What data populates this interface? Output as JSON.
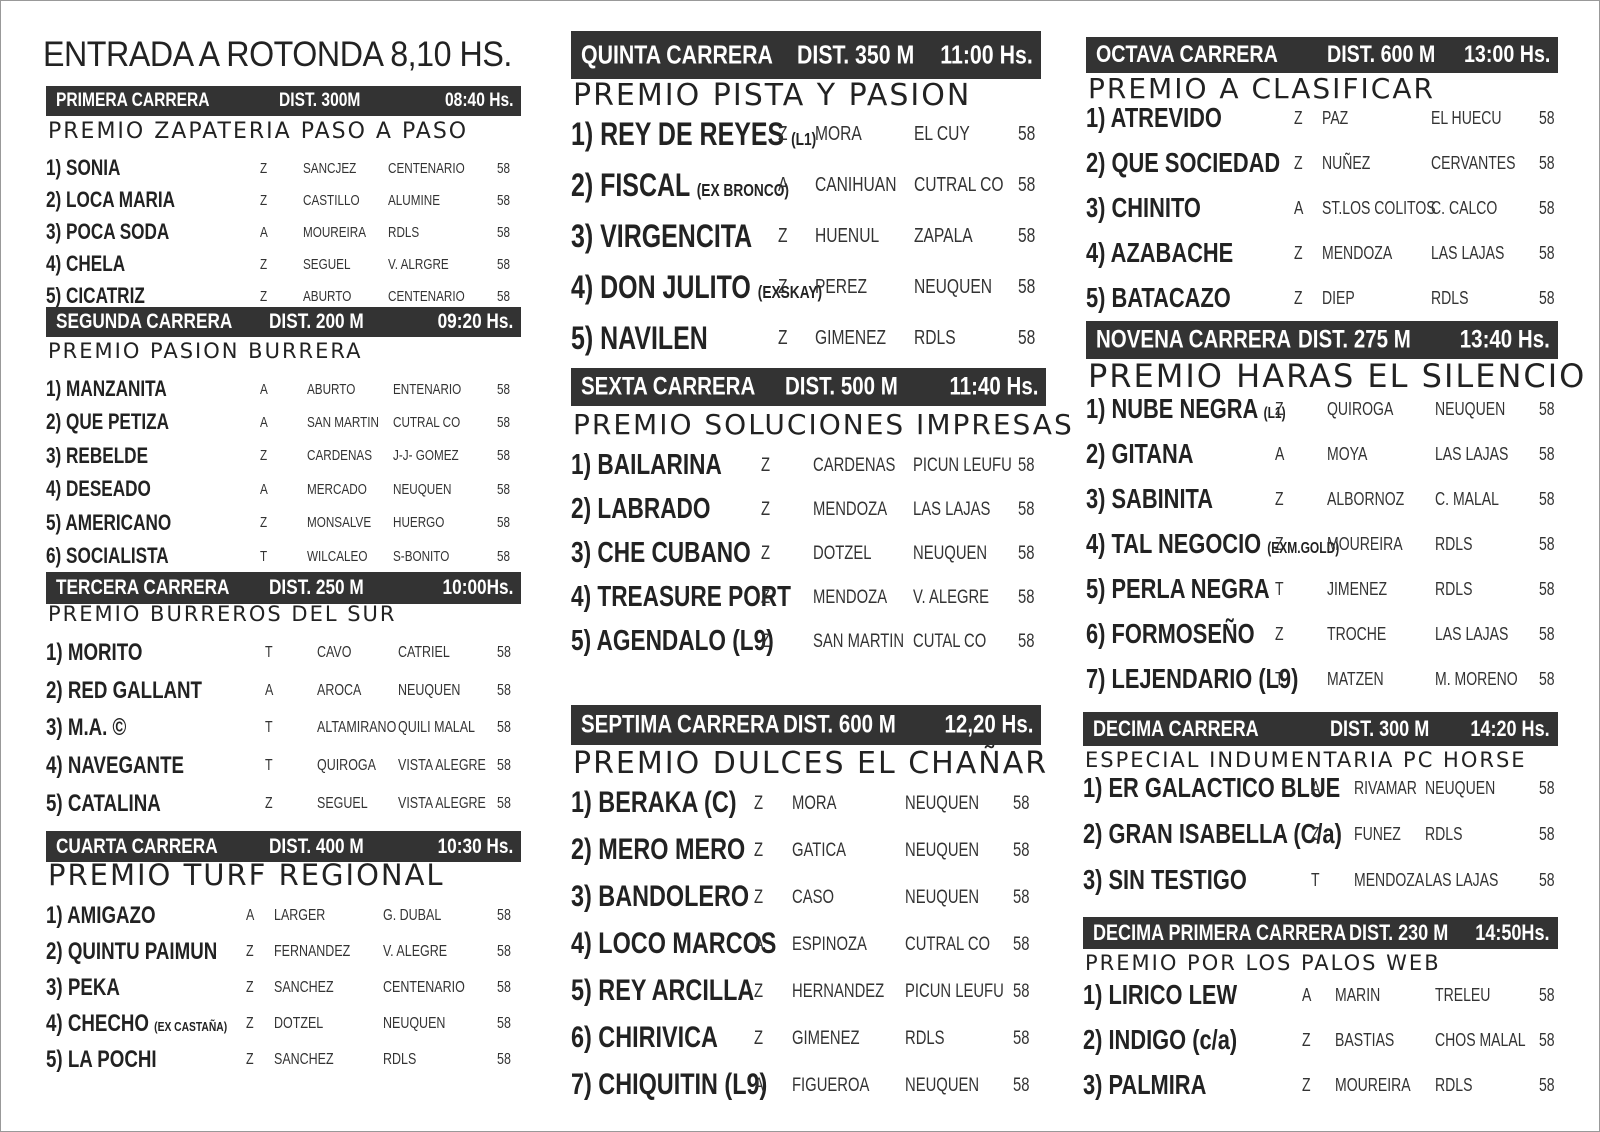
{
  "header": {
    "title": "ENTRADA A ROTONDA 8,10 HS."
  },
  "races": [
    {
      "name": "PRIMERA CARRERA",
      "dist": "DIST. 300M",
      "time": "08:40 Hs.",
      "prize": "PREMIO ZAPATERIA PASO A PASO",
      "horses": [
        {
          "name": "1) SONIA",
          "cat": "Z",
          "jockey": "SANCJEZ",
          "from": "CENTENARIO",
          "weight": "58"
        },
        {
          "name": "2) LOCA MARIA",
          "cat": "Z",
          "jockey": "CASTILLO",
          "from": "ALUMINE",
          "weight": "58"
        },
        {
          "name": "3) POCA SODA",
          "cat": "A",
          "jockey": "MOUREIRA",
          "from": "RDLS",
          "weight": "58"
        },
        {
          "name": "4) CHELA",
          "cat": "Z",
          "jockey": "SEGUEL",
          "from": "V. ALRGRE",
          "weight": "58"
        },
        {
          "name": "5) CICATRIZ",
          "cat": "Z",
          "jockey": "ABURTO",
          "from": "CENTENARIO",
          "weight": "58"
        }
      ]
    },
    {
      "name": "SEGUNDA CARRERA",
      "dist": "DIST. 200 M",
      "time": "09:20 Hs.",
      "prize": "PREMIO PASION BURRERA",
      "horses": [
        {
          "name": "1) MANZANITA",
          "cat": "A",
          "jockey": "ABURTO",
          "from": "ENTENARIO",
          "weight": "58"
        },
        {
          "name": "2) QUE PETIZA",
          "cat": "A",
          "jockey": "SAN MARTIN",
          "from": "CUTRAL CO",
          "weight": "58"
        },
        {
          "name": "3) REBELDE",
          "cat": "Z",
          "jockey": "CARDENAS",
          "from": "J-J- GOMEZ",
          "weight": "58"
        },
        {
          "name": "4) DESEADO",
          "cat": "A",
          "jockey": "MERCADO",
          "from": "NEUQUEN",
          "weight": "58"
        },
        {
          "name": "5)  AMERICANO",
          "cat": "Z",
          "jockey": "MONSALVE",
          "from": "HUERGO",
          "weight": "58"
        },
        {
          "name": "6) SOCIALISTA",
          "cat": "T",
          "jockey": "WILCALEO",
          "from": "S-BONITO",
          "weight": "58"
        }
      ]
    },
    {
      "name": "TERCERA CARRERA",
      "dist": "DIST. 250 M",
      "time": "10:00Hs.",
      "prize": "PREMIO BURREROS DEL SUR",
      "horses": [
        {
          "name": "1) MORITO",
          "cat": "T",
          "jockey": "CAVO",
          "from": "CATRIEL",
          "weight": "58"
        },
        {
          "name": "2) RED GALLANT",
          "cat": "A",
          "jockey": "AROCA",
          "from": "NEUQUEN",
          "weight": "58"
        },
        {
          "name": "3) M.A. ©",
          "cat": "T",
          "jockey": "ALTAMIRANO",
          "from": "QUILI MALAL",
          "weight": "58"
        },
        {
          "name": "4) NAVEGANTE",
          "cat": "T",
          "jockey": "QUIROGA",
          "from": "VISTA ALEGRE",
          "weight": "58"
        },
        {
          "name": "5) CATALINA",
          "cat": "Z",
          "jockey": "SEGUEL",
          "from": "VISTA ALEGRE",
          "weight": "58"
        }
      ]
    },
    {
      "name": "CUARTA CARRERA",
      "dist": "DIST. 400 M",
      "time": "10:30 Hs.",
      "prize": "PREMIO TURF REGIONAL",
      "horses": [
        {
          "name": "1) AMIGAZO",
          "cat": "A",
          "jockey": "LARGER",
          "from": "G. DUBAL",
          "weight": "58"
        },
        {
          "name": "2) QUINTU PAIMUN",
          "cat": "Z",
          "jockey": "FERNANDEZ",
          "from": "V. ALEGRE",
          "weight": "58"
        },
        {
          "name": "3) PEKA",
          "cat": "Z",
          "jockey": "SANCHEZ",
          "from": "CENTENARIO",
          "weight": "58"
        },
        {
          "name": "4) CHECHO",
          "note": "(EX CASTAÑA)",
          "cat": "Z",
          "jockey": "DOTZEL",
          "from": "NEUQUEN",
          "weight": "58"
        },
        {
          "name": "5) LA POCHI",
          "cat": "Z",
          "jockey": "SANCHEZ",
          "from": "RDLS",
          "weight": "58"
        }
      ]
    },
    {
      "name": "QUINTA CARRERA",
      "dist": "DIST. 350 M",
      "time": "11:00 Hs.",
      "prize": "PREMIO PISTA Y PASION",
      "horses": [
        {
          "name": "1) REY DE REYES",
          "note": "(L1)",
          "cat": "Z",
          "jockey": "MORA",
          "from": "EL CUY",
          "weight": "58"
        },
        {
          "name": "2) FISCAL",
          "note": "(EX BRONCO)",
          "cat": "A",
          "jockey": "CANIHUAN",
          "from": "CUTRAL CO",
          "weight": "58"
        },
        {
          "name": "3) VIRGENCITA",
          "cat": "Z",
          "jockey": "HUENUL",
          "from": "ZAPALA",
          "weight": "58"
        },
        {
          "name": "4) DON JULITO",
          "note": "(EXSKAY)",
          "cat": "Z",
          "jockey": "PEREZ",
          "from": "NEUQUEN",
          "weight": "58"
        },
        {
          "name": "5) NAVILEN",
          "cat": "Z",
          "jockey": "GIMENEZ",
          "from": "RDLS",
          "weight": "58"
        }
      ]
    },
    {
      "name": "SEXTA CARRERA",
      "dist": "DIST.  500 M",
      "time": "11:40 Hs.",
      "prize": "PREMIO SOLUCIONES IMPRESAS",
      "horses": [
        {
          "name": "1) BAILARINA",
          "cat": "Z",
          "jockey": "CARDENAS",
          "from": "PICUN LEUFU",
          "weight": "58"
        },
        {
          "name": "2) LABRADO",
          "cat": "Z",
          "jockey": "MENDOZA",
          "from": "LAS LAJAS",
          "weight": "58"
        },
        {
          "name": "3) CHE CUBANO",
          "cat": "Z",
          "jockey": "DOTZEL",
          "from": "NEUQUEN",
          "weight": "58"
        },
        {
          "name": "4) TREASURE PORT",
          "cat": "Z",
          "jockey": "MENDOZA",
          "from": "V. ALEGRE",
          "weight": "58"
        },
        {
          "name": "5) AGENDALO (L9)",
          "cat": "Z",
          "jockey": "SAN MARTIN",
          "from": "CUTAL CO",
          "weight": "58"
        }
      ]
    },
    {
      "name": "SEPTIMA CARRERA",
      "dist": "DIST.  600 M",
      "time": "12,20 Hs.",
      "prize": "PREMIO DULCES EL CHAÑAR",
      "horses": [
        {
          "name": "1) BERAKA (C)",
          "cat": "Z",
          "jockey": "MORA",
          "from": "NEUQUEN",
          "weight": "58"
        },
        {
          "name": "2) MERO MERO",
          "cat": "Z",
          "jockey": "GATICA",
          "from": "NEUQUEN",
          "weight": "58"
        },
        {
          "name": "3) BANDOLERO",
          "cat": "Z",
          "jockey": "CASO",
          "from": "NEUQUEN",
          "weight": "58"
        },
        {
          "name": "4) LOCO MARCOS",
          "cat": "A",
          "jockey": "ESPINOZA",
          "from": "CUTRAL CO",
          "weight": "58"
        },
        {
          "name": "5) REY ARCILLA",
          "cat": "Z",
          "jockey": "HERNANDEZ",
          "from": "PICUN LEUFU",
          "weight": "58"
        },
        {
          "name": "6) CHIRIVICA",
          "cat": "Z",
          "jockey": "GIMENEZ",
          "from": "RDLS",
          "weight": "58"
        },
        {
          "name": "7) CHIQUITIN (L9)",
          "cat": "A",
          "jockey": "FIGUEROA",
          "from": "NEUQUEN",
          "weight": "58"
        }
      ]
    },
    {
      "name": "OCTAVA CARRERA",
      "dist": "DIST. 600 M",
      "time": "13:00 Hs.",
      "prize": "PREMIO A CLASIFICAR",
      "horses": [
        {
          "name": "1) ATREVIDO",
          "cat": "Z",
          "jockey": "PAZ",
          "from": "EL HUECU",
          "weight": "58"
        },
        {
          "name": "2) QUE SOCIEDAD",
          "cat": "Z",
          "jockey": "NUÑEZ",
          "from": "CERVANTES",
          "weight": "58"
        },
        {
          "name": "3) CHINITO",
          "cat": "A",
          "jockey": "ST.LOS COLITOS",
          "from": "C. CALCO",
          "weight": "58"
        },
        {
          "name": "4) AZABACHE",
          "cat": "Z",
          "jockey": "MENDOZA",
          "from": "LAS LAJAS",
          "weight": "58"
        },
        {
          "name": "5) BATACAZO",
          "cat": "Z",
          "jockey": "DIEP",
          "from": "RDLS",
          "weight": "58"
        }
      ]
    },
    {
      "name": "NOVENA CARRERA",
      "dist": "DIST.  275 M",
      "time": "13:40 Hs.",
      "prize": "PREMIO HARAS EL SILENCIO",
      "horses": [
        {
          "name": "1) NUBE NEGRA",
          "note": "(L1)",
          "cat": "Z",
          "jockey": "QUIROGA",
          "from": "NEUQUEN",
          "weight": "58"
        },
        {
          "name": "2) GITANA",
          "cat": "A",
          "jockey": "MOYA",
          "from": "LAS LAJAS",
          "weight": "58"
        },
        {
          "name": "3) SABINITA",
          "cat": "Z",
          "jockey": "ALBORNOZ",
          "from": "C. MALAL",
          "weight": "58"
        },
        {
          "name": "4) TAL NEGOCIO",
          "note": "(EXM.GOLD)",
          "cat": "Z",
          "jockey": "MOUREIRA",
          "from": "RDLS",
          "weight": "58"
        },
        {
          "name": "5) PERLA NEGRA",
          "cat": "T",
          "jockey": "JIMENEZ",
          "from": "RDLS",
          "weight": "58"
        },
        {
          "name": "6) FORMOSEÑO",
          "cat": "Z",
          "jockey": "TROCHE",
          "from": "LAS LAJAS",
          "weight": "58"
        },
        {
          "name": "7) LEJENDARIO (L9)",
          "cat": "T",
          "jockey": "MATZEN",
          "from": "M. MORENO",
          "weight": "58"
        }
      ]
    },
    {
      "name": "DECIMA CARRERA",
      "dist": "DIST. 300 M",
      "time": "14:20 Hs.",
      "prize": "ESPECIAL INDUMENTARIA PC HORSE",
      "horses": [
        {
          "name": "1) ER GALACTICO BLUE",
          "cat": "A",
          "jockey": "RIVAMAR",
          "from": "NEUQUEN",
          "weight": "58"
        },
        {
          "name": "2) GRAN ISABELLA (C/a)",
          "cat": "Z",
          "jockey": "FUNEZ",
          "from": "RDLS",
          "weight": "58"
        },
        {
          "name": "3) SIN TESTIGO",
          "cat": "T",
          "jockey": "MENDOZA",
          "from": "LAS LAJAS",
          "weight": "58"
        }
      ]
    },
    {
      "name": "DECIMA  PRIMERA CARRERA",
      "dist": "DIST.  230 M",
      "time": "14:50Hs.",
      "prize": "PREMIO POR LOS PALOS WEB",
      "horses": [
        {
          "name": "1) LIRICO LEW",
          "cat": "A",
          "jockey": "MARIN",
          "from": "TRELEU",
          "weight": "58"
        },
        {
          "name": "2) INDIGO (c/a)",
          "cat": "Z",
          "jockey": "BASTIAS",
          "from": "CHOS MALAL",
          "weight": "58"
        },
        {
          "name": "3) PALMIRA",
          "cat": "Z",
          "jockey": "MOUREIRA",
          "from": "RDLS",
          "weight": "58"
        }
      ]
    }
  ]
}
